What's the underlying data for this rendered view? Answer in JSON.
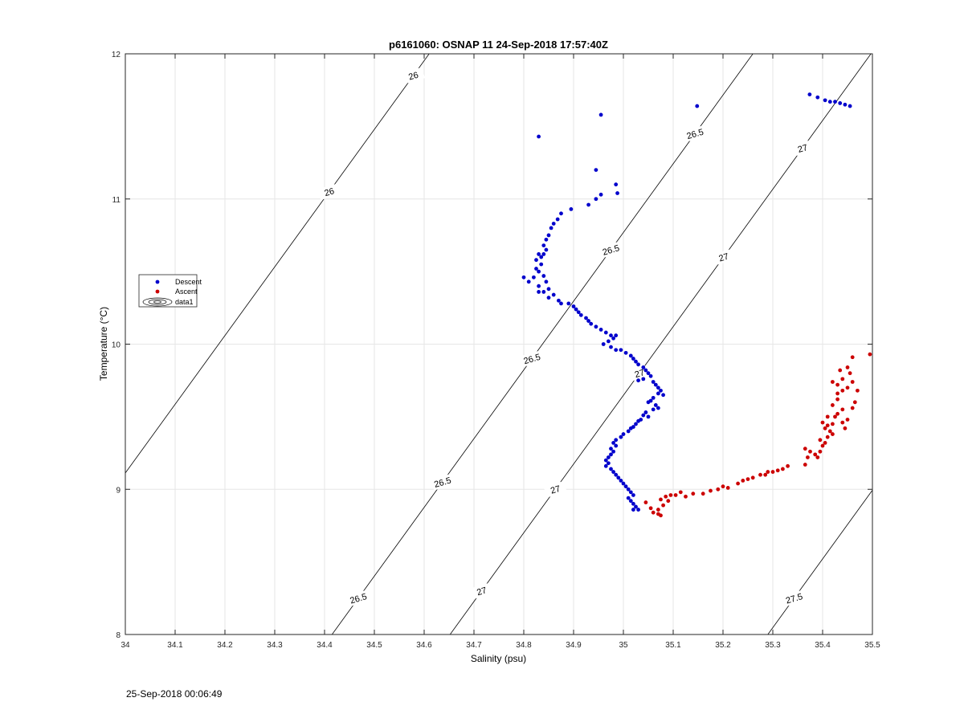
{
  "footer_timestamp": "25-Sep-2018 00:06:49",
  "chart_data": {
    "type": "scatter",
    "title": "p6161060: OSNAP 11 24-Sep-2018 17:57:40Z",
    "xlabel": "Salinity (psu)",
    "ylabel": "Temperature (°C)",
    "xlim": [
      34,
      35.5
    ],
    "ylim": [
      8,
      12
    ],
    "xticks": [
      "34",
      "34.1",
      "34.2",
      "34.3",
      "34.4",
      "34.5",
      "34.6",
      "34.7",
      "34.8",
      "34.9",
      "35",
      "35.1",
      "35.2",
      "35.3",
      "35.4",
      "35.5"
    ],
    "yticks": [
      "8",
      "9",
      "10",
      "11",
      "12"
    ],
    "grid": true,
    "legend": {
      "placement": "left",
      "entries": [
        {
          "name": "Descent",
          "marker": "dot",
          "color": "#0000cc"
        },
        {
          "name": "Ascent",
          "marker": "dot",
          "color": "#cc0000"
        },
        {
          "name": "data1",
          "marker": "contour",
          "color": "#000000"
        }
      ]
    },
    "contours": [
      {
        "label": "26",
        "sal_at_temp8": 33.765,
        "labels_at_temp": [
          11.85,
          11.05
        ]
      },
      {
        "label": "26.5",
        "sal_at_temp8": 34.415,
        "labels_at_temp": [
          8.25,
          9.05,
          9.9,
          10.65,
          11.45
        ]
      },
      {
        "label": "27",
        "sal_at_temp8": 34.652,
        "labels_at_temp": [
          8.3,
          9.0,
          9.8,
          10.6,
          11.35
        ]
      },
      {
        "label": "27.5",
        "sal_at_temp8": 35.29,
        "labels_at_temp": [
          8.25,
          9.05
        ]
      }
    ],
    "series": [
      {
        "name": "Descent",
        "color": "#0000cc",
        "points": [
          [
            34.83,
            11.43
          ],
          [
            34.955,
            11.58
          ],
          [
            35.148,
            11.64
          ],
          [
            35.374,
            11.72
          ],
          [
            35.39,
            11.7
          ],
          [
            35.405,
            11.68
          ],
          [
            35.415,
            11.67
          ],
          [
            35.425,
            11.67
          ],
          [
            35.435,
            11.66
          ],
          [
            35.445,
            11.65
          ],
          [
            35.455,
            11.64
          ],
          [
            34.945,
            11.2
          ],
          [
            34.985,
            11.1
          ],
          [
            34.988,
            11.04
          ],
          [
            34.955,
            11.03
          ],
          [
            34.945,
            11.0
          ],
          [
            34.93,
            10.96
          ],
          [
            34.895,
            10.93
          ],
          [
            34.875,
            10.9
          ],
          [
            34.868,
            10.86
          ],
          [
            34.86,
            10.83
          ],
          [
            34.855,
            10.8
          ],
          [
            34.85,
            10.75
          ],
          [
            34.845,
            10.72
          ],
          [
            34.84,
            10.68
          ],
          [
            34.845,
            10.65
          ],
          [
            34.84,
            10.62
          ],
          [
            34.835,
            10.6
          ],
          [
            34.83,
            10.62
          ],
          [
            34.825,
            10.58
          ],
          [
            34.835,
            10.55
          ],
          [
            34.825,
            10.52
          ],
          [
            34.83,
            10.5
          ],
          [
            34.84,
            10.47
          ],
          [
            34.82,
            10.46
          ],
          [
            34.8,
            10.46
          ],
          [
            34.81,
            10.43
          ],
          [
            34.845,
            10.43
          ],
          [
            34.83,
            10.4
          ],
          [
            34.85,
            10.38
          ],
          [
            34.84,
            10.36
          ],
          [
            34.83,
            10.36
          ],
          [
            34.86,
            10.34
          ],
          [
            34.85,
            10.32
          ],
          [
            34.87,
            10.3
          ],
          [
            34.875,
            10.28
          ],
          [
            34.89,
            10.28
          ],
          [
            34.9,
            10.26
          ],
          [
            34.905,
            10.24
          ],
          [
            34.91,
            10.22
          ],
          [
            34.915,
            10.2
          ],
          [
            34.925,
            10.18
          ],
          [
            34.93,
            10.16
          ],
          [
            34.935,
            10.14
          ],
          [
            34.945,
            10.12
          ],
          [
            34.955,
            10.1
          ],
          [
            34.965,
            10.08
          ],
          [
            34.975,
            10.06
          ],
          [
            34.985,
            10.06
          ],
          [
            34.98,
            10.04
          ],
          [
            34.97,
            10.02
          ],
          [
            34.96,
            10.0
          ],
          [
            34.975,
            9.98
          ],
          [
            34.985,
            9.96
          ],
          [
            34.995,
            9.96
          ],
          [
            35.005,
            9.94
          ],
          [
            35.015,
            9.92
          ],
          [
            35.02,
            9.9
          ],
          [
            35.025,
            9.88
          ],
          [
            35.03,
            9.86
          ],
          [
            35.04,
            9.84
          ],
          [
            35.045,
            9.82
          ],
          [
            35.05,
            9.8
          ],
          [
            35.055,
            9.78
          ],
          [
            35.04,
            9.76
          ],
          [
            35.03,
            9.75
          ],
          [
            35.06,
            9.74
          ],
          [
            35.065,
            9.72
          ],
          [
            35.07,
            9.7
          ],
          [
            35.075,
            9.68
          ],
          [
            35.07,
            9.66
          ],
          [
            35.08,
            9.65
          ],
          [
            35.06,
            9.63
          ],
          [
            35.055,
            9.61
          ],
          [
            35.05,
            9.6
          ],
          [
            35.065,
            9.58
          ],
          [
            35.07,
            9.56
          ],
          [
            35.06,
            9.55
          ],
          [
            35.045,
            9.53
          ],
          [
            35.04,
            9.51
          ],
          [
            35.05,
            9.5
          ],
          [
            35.035,
            9.48
          ],
          [
            35.03,
            9.47
          ],
          [
            35.025,
            9.45
          ],
          [
            35.02,
            9.43
          ],
          [
            35.015,
            9.42
          ],
          [
            35.01,
            9.4
          ],
          [
            35.0,
            9.38
          ],
          [
            34.995,
            9.36
          ],
          [
            34.985,
            9.34
          ],
          [
            34.98,
            9.32
          ],
          [
            34.985,
            9.3
          ],
          [
            34.975,
            9.28
          ],
          [
            34.98,
            9.26
          ],
          [
            34.975,
            9.24
          ],
          [
            34.97,
            9.22
          ],
          [
            34.965,
            9.2
          ],
          [
            34.97,
            9.18
          ],
          [
            34.965,
            9.16
          ],
          [
            34.975,
            9.14
          ],
          [
            34.98,
            9.12
          ],
          [
            34.985,
            9.1
          ],
          [
            34.99,
            9.08
          ],
          [
            34.995,
            9.06
          ],
          [
            35.0,
            9.04
          ],
          [
            35.005,
            9.02
          ],
          [
            35.01,
            9.0
          ],
          [
            35.015,
            8.98
          ],
          [
            35.02,
            8.96
          ],
          [
            35.01,
            8.94
          ],
          [
            35.015,
            8.92
          ],
          [
            35.02,
            8.9
          ],
          [
            35.025,
            8.88
          ],
          [
            35.03,
            8.86
          ],
          [
            35.02,
            8.86
          ]
        ]
      },
      {
        "name": "Ascent",
        "color": "#cc0000",
        "points": [
          [
            35.045,
            8.91
          ],
          [
            35.055,
            8.87
          ],
          [
            35.06,
            8.84
          ],
          [
            35.07,
            8.83
          ],
          [
            35.075,
            8.82
          ],
          [
            35.07,
            8.86
          ],
          [
            35.08,
            8.89
          ],
          [
            35.075,
            8.93
          ],
          [
            35.085,
            8.95
          ],
          [
            35.09,
            8.92
          ],
          [
            35.095,
            8.96
          ],
          [
            35.105,
            8.96
          ],
          [
            35.115,
            8.98
          ],
          [
            35.125,
            8.95
          ],
          [
            35.14,
            8.97
          ],
          [
            35.16,
            8.97
          ],
          [
            35.175,
            8.99
          ],
          [
            35.19,
            9.0
          ],
          [
            35.2,
            9.02
          ],
          [
            35.21,
            9.01
          ],
          [
            35.23,
            9.04
          ],
          [
            35.24,
            9.06
          ],
          [
            35.25,
            9.07
          ],
          [
            35.26,
            9.08
          ],
          [
            35.275,
            9.1
          ],
          [
            35.285,
            9.1
          ],
          [
            35.29,
            9.12
          ],
          [
            35.3,
            9.12
          ],
          [
            35.31,
            9.13
          ],
          [
            35.32,
            9.14
          ],
          [
            35.33,
            9.16
          ],
          [
            35.365,
            9.17
          ],
          [
            35.37,
            9.22
          ],
          [
            35.365,
            9.28
          ],
          [
            35.375,
            9.26
          ],
          [
            35.385,
            9.24
          ],
          [
            35.39,
            9.22
          ],
          [
            35.395,
            9.26
          ],
          [
            35.4,
            9.3
          ],
          [
            35.395,
            9.34
          ],
          [
            35.405,
            9.32
          ],
          [
            35.41,
            9.36
          ],
          [
            35.42,
            9.38
          ],
          [
            35.415,
            9.4
          ],
          [
            35.405,
            9.42
          ],
          [
            35.41,
            9.44
          ],
          [
            35.42,
            9.45
          ],
          [
            35.4,
            9.46
          ],
          [
            35.41,
            9.5
          ],
          [
            35.425,
            9.5
          ],
          [
            35.43,
            9.52
          ],
          [
            35.44,
            9.46
          ],
          [
            35.445,
            9.42
          ],
          [
            35.45,
            9.48
          ],
          [
            35.44,
            9.55
          ],
          [
            35.46,
            9.56
          ],
          [
            35.465,
            9.6
          ],
          [
            35.43,
            9.62
          ],
          [
            35.42,
            9.58
          ],
          [
            35.43,
            9.66
          ],
          [
            35.44,
            9.68
          ],
          [
            35.45,
            9.7
          ],
          [
            35.47,
            9.68
          ],
          [
            35.46,
            9.74
          ],
          [
            35.455,
            9.8
          ],
          [
            35.44,
            9.76
          ],
          [
            35.43,
            9.72
          ],
          [
            35.42,
            9.74
          ],
          [
            35.435,
            9.82
          ],
          [
            35.45,
            9.84
          ],
          [
            35.46,
            9.91
          ],
          [
            35.495,
            9.93
          ]
        ]
      }
    ]
  }
}
